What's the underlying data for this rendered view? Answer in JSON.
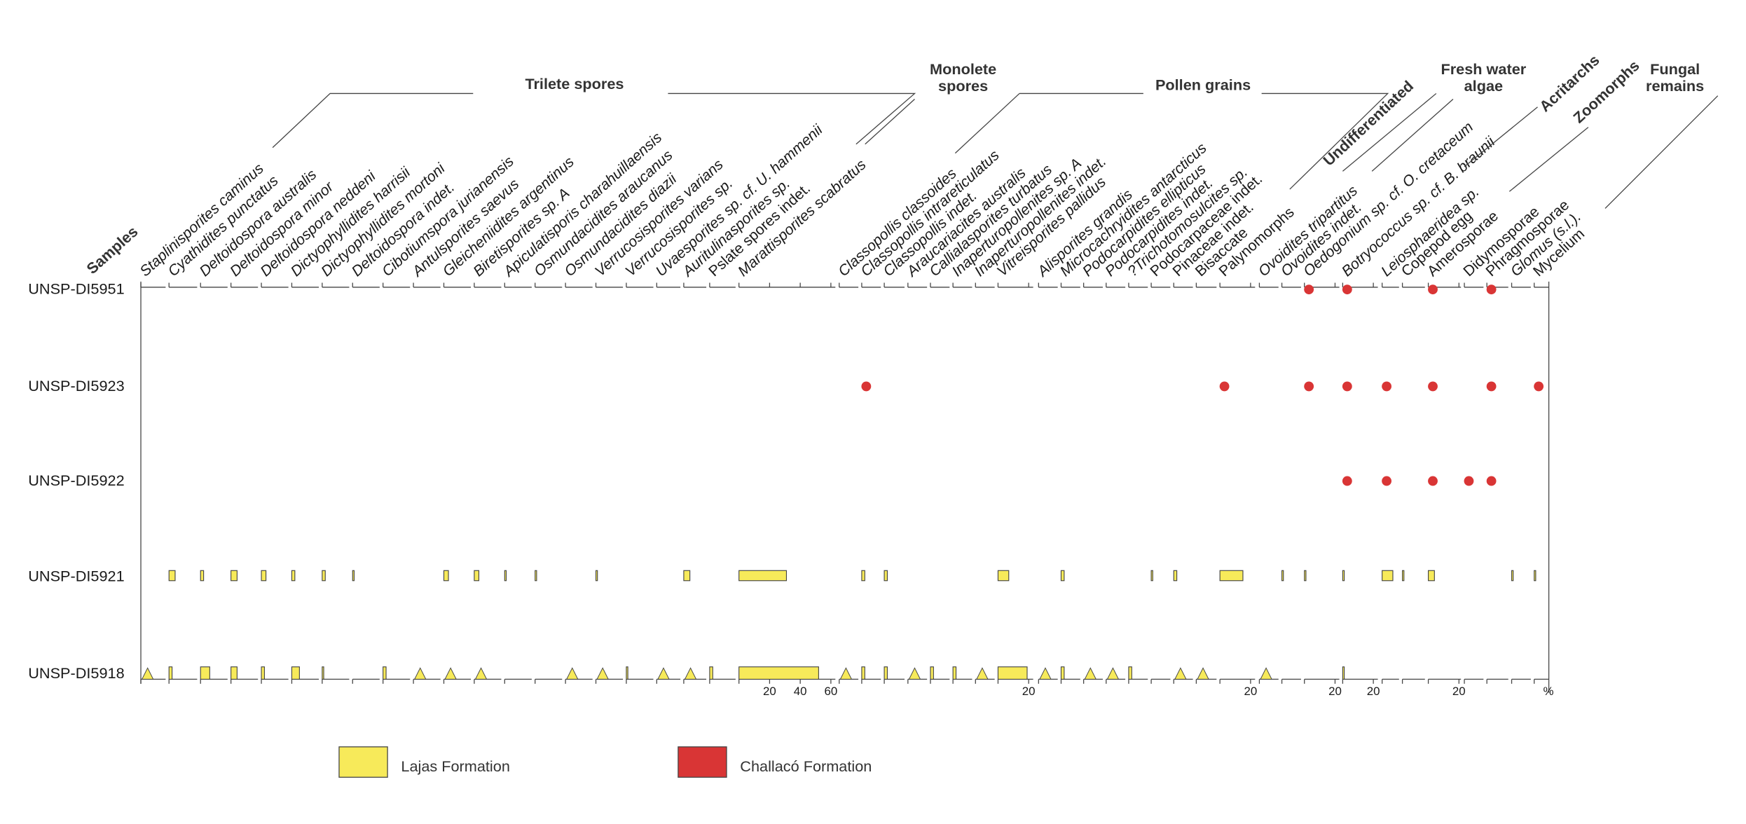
{
  "samples_header": "Samples",
  "groups": [
    {
      "label": [
        "Trilete spores"
      ],
      "taxa": [
        {
          "name": "Staplinisporites caminus"
        },
        {
          "name": "Cyathidites punctatus"
        },
        {
          "name": "Deltoidospora australis"
        },
        {
          "name": "Deltoidospora minor"
        },
        {
          "name": "Deltoidospora neddeni"
        },
        {
          "name": "Dictyophyllidites harrisii"
        },
        {
          "name": "Dictyophyllidites mortoni"
        },
        {
          "name": "Deltoidospora indet."
        },
        {
          "name": "Cibotiumspora jurianensis"
        },
        {
          "name": "Antulsporites saevus"
        },
        {
          "name": "Gleicheniidites argentinus"
        },
        {
          "name": "Biretisporites sp. A"
        },
        {
          "name": "Apiculatisporis charahuillaensis"
        },
        {
          "name": "Osmundacidites araucanus"
        },
        {
          "name": "Osmundacidites diazii"
        },
        {
          "name": "Verrucosisporites varians"
        },
        {
          "name": "Verrucosisporites sp."
        },
        {
          "name": "Uvaesporites sp. cf. U. hammenii"
        },
        {
          "name": "Auritulinasporites sp."
        },
        {
          "name": "Pslate spores indet."
        }
      ]
    },
    {
      "label": [
        "Monolete",
        "spores"
      ],
      "taxa": [
        {
          "name": "Marattisporites scabratus",
          "scale_ticks": [
            20,
            40,
            60
          ]
        }
      ]
    },
    {
      "label": [
        "Pollen grains"
      ],
      "taxa": [
        {
          "name": "Classopollis classoides"
        },
        {
          "name": "Classopollis intrareticulatus"
        },
        {
          "name": "Classopollis indet."
        },
        {
          "name": "Araucariacites australis"
        },
        {
          "name": "Callialasporites turbatus"
        },
        {
          "name": "Inaperturopollenites sp. A"
        },
        {
          "name": "Inaperturopollenites indet."
        },
        {
          "name": "Vitreisporites pallidus",
          "scale_ticks": [
            20
          ]
        },
        {
          "name": "Alisporites grandis"
        },
        {
          "name": "Microcachryidites antarcticus"
        },
        {
          "name": "Podocarpidites ellipticus"
        },
        {
          "name": "Podocarpidites indet."
        },
        {
          "name": "?Trichotomosulcites sp."
        },
        {
          "name": "Podocarpaceae indet."
        },
        {
          "name": "Pinaceae indet."
        },
        {
          "name": "Bisaccate"
        }
      ]
    },
    {
      "label": [
        "Undifferentiated"
      ],
      "taxa": [
        {
          "name": "Palynomorphs",
          "scale_ticks": [
            20
          ]
        }
      ]
    },
    {
      "label": [
        "Fresh water",
        "algae"
      ],
      "taxa": [
        {
          "name": "Ovoidites tripartitus"
        },
        {
          "name": "Ovoidites indet."
        },
        {
          "name": "Oedogonium sp. cf. O. cretaceum",
          "scale_ticks": [
            20
          ]
        },
        {
          "name": "Botryococcus sp. cf. B. braunii",
          "scale_ticks": [
            20
          ]
        }
      ]
    },
    {
      "label": [
        "Acritarchs"
      ],
      "taxa": [
        {
          "name": "Leiosphaeridea sp."
        }
      ]
    },
    {
      "label": [
        "Zoomorphs"
      ],
      "taxa": [
        {
          "name": "Copepod egg"
        }
      ]
    },
    {
      "label": [
        "Fungal",
        "remains"
      ],
      "taxa": [
        {
          "name": "Amerosporae",
          "scale_ticks": [
            20
          ]
        },
        {
          "name": "Didymosporae"
        },
        {
          "name": "Phragmosporae"
        },
        {
          "name": "Glomus (s.l.)."
        },
        {
          "name": "Mycelium"
        }
      ]
    }
  ],
  "unit": "%",
  "samples": [
    {
      "name": "UNSP-DI5951",
      "color": "#d93535",
      "marker": "dot",
      "values": [
        null,
        null,
        null,
        null,
        null,
        null,
        null,
        null,
        null,
        null,
        null,
        null,
        null,
        null,
        null,
        null,
        null,
        null,
        null,
        null,
        null,
        null,
        null,
        null,
        null,
        null,
        null,
        null,
        null,
        null,
        null,
        null,
        null,
        null,
        null,
        null,
        null,
        null,
        null,
        null,
        true,
        true,
        null,
        null,
        true,
        null,
        true,
        null,
        null
      ]
    },
    {
      "name": "UNSP-DI5923",
      "color": "#d93535",
      "marker": "dot",
      "values": [
        null,
        null,
        null,
        null,
        null,
        null,
        null,
        null,
        null,
        null,
        null,
        null,
        null,
        null,
        null,
        null,
        null,
        null,
        null,
        null,
        null,
        null,
        true,
        null,
        null,
        null,
        null,
        null,
        null,
        null,
        null,
        null,
        null,
        null,
        null,
        null,
        null,
        true,
        null,
        null,
        true,
        true,
        true,
        null,
        true,
        null,
        true,
        null,
        true
      ]
    },
    {
      "name": "UNSP-DI5922",
      "color": "#d93535",
      "marker": "dot",
      "values": [
        null,
        null,
        null,
        null,
        null,
        null,
        null,
        null,
        null,
        null,
        null,
        null,
        null,
        null,
        null,
        null,
        null,
        null,
        null,
        null,
        null,
        null,
        null,
        null,
        null,
        null,
        null,
        null,
        null,
        null,
        null,
        null,
        null,
        null,
        null,
        null,
        null,
        null,
        null,
        null,
        null,
        true,
        true,
        null,
        true,
        true,
        true,
        null,
        null
      ]
    },
    {
      "name": "UNSP-DI5921",
      "color": "#f7ea5a",
      "marker": "triangle",
      "values": [
        null,
        4,
        2,
        4,
        3,
        2,
        2,
        1,
        null,
        null,
        3,
        3,
        1,
        1,
        null,
        1,
        null,
        null,
        4,
        null,
        31,
        null,
        2,
        2,
        null,
        null,
        null,
        null,
        7,
        null,
        2,
        null,
        null,
        null,
        1,
        2,
        null,
        15,
        null,
        1,
        1,
        1,
        7,
        1,
        4,
        null,
        null,
        1,
        1
      ]
    },
    {
      "name": "UNSP-DI5918",
      "color": "#f7ea5a",
      "marker": "triangle",
      "values": [
        true,
        2,
        6,
        4,
        2,
        5,
        1,
        null,
        2,
        true,
        true,
        true,
        null,
        null,
        true,
        true,
        1,
        true,
        true,
        2,
        52,
        true,
        2,
        2,
        true,
        2,
        2,
        true,
        19,
        true,
        2,
        true,
        true,
        2,
        null,
        true,
        true,
        null,
        true,
        null,
        null,
        1,
        null,
        null,
        null,
        null,
        null,
        null,
        null
      ]
    }
  ],
  "legend": [
    {
      "label": "Lajas Formation",
      "color": "#f7ea5a"
    },
    {
      "label": "Challacó Formation",
      "color": "#d93535"
    }
  ]
}
